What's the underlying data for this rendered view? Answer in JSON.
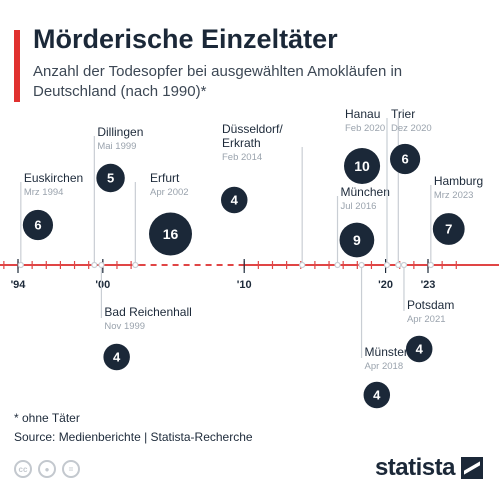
{
  "header": {
    "title": "Mörderische Einzeltäter",
    "subtitle": "Anzahl der Todesopfer bei ausgewählten Amokläufen in Deutschland (nach 1990)*"
  },
  "footer": {
    "footnote": "* ohne Täter",
    "source": "Source: Medienberichte | Statista-Recherche",
    "logo": "statista",
    "license_icons": [
      "cc-icon",
      "person-icon",
      "equals-icon"
    ]
  },
  "colors": {
    "accent": "#e0312f",
    "axis": "#e04545",
    "bubble": "#1b2838",
    "stem": "#c9ced4"
  },
  "chart_data": {
    "type": "scatter",
    "x_axis": {
      "range": [
        1991,
        2025
      ],
      "ticks": [
        1994,
        2000,
        2010,
        2020,
        2023
      ],
      "tick_labels": [
        "'94",
        "'00",
        "'10",
        "'20",
        "'23"
      ],
      "dashed_segment": [
        2002.6,
        2010
      ]
    },
    "y_label": "Anzahl der Todesopfer",
    "events": [
      {
        "name": "Euskirchen",
        "date": "Mrz 1994",
        "x": 1994.2,
        "value": 6,
        "position": "above"
      },
      {
        "name": "Dillingen",
        "date": "Mai 1999",
        "x": 1999.4,
        "value": 5,
        "position": "above"
      },
      {
        "name": "Bad Reichenhall",
        "date": "Nov 1999",
        "x": 1999.9,
        "value": 4,
        "position": "below"
      },
      {
        "name": "Erfurt",
        "date": "Apr 2002",
        "x": 2002.3,
        "value": 16,
        "position": "above"
      },
      {
        "name": "Düsseldorf/ Erkrath",
        "date": "Feb 2014",
        "x": 2014.1,
        "value": 4,
        "position": "above"
      },
      {
        "name": "München",
        "date": "Jul 2016",
        "x": 2016.6,
        "value": 9,
        "position": "above"
      },
      {
        "name": "Münster",
        "date": "Apr 2018",
        "x": 2018.3,
        "value": 4,
        "position": "below"
      },
      {
        "name": "Hanau",
        "date": "Feb 2020",
        "x": 2020.1,
        "value": 10,
        "position": "above"
      },
      {
        "name": "Trier",
        "date": "Dez 2020",
        "x": 2020.9,
        "value": 6,
        "position": "above"
      },
      {
        "name": "Potsdam",
        "date": "Apr 2021",
        "x": 2021.3,
        "value": 4,
        "position": "below"
      },
      {
        "name": "Hamburg",
        "date": "Mrz 2023",
        "x": 2023.2,
        "value": 7,
        "position": "above"
      }
    ]
  }
}
